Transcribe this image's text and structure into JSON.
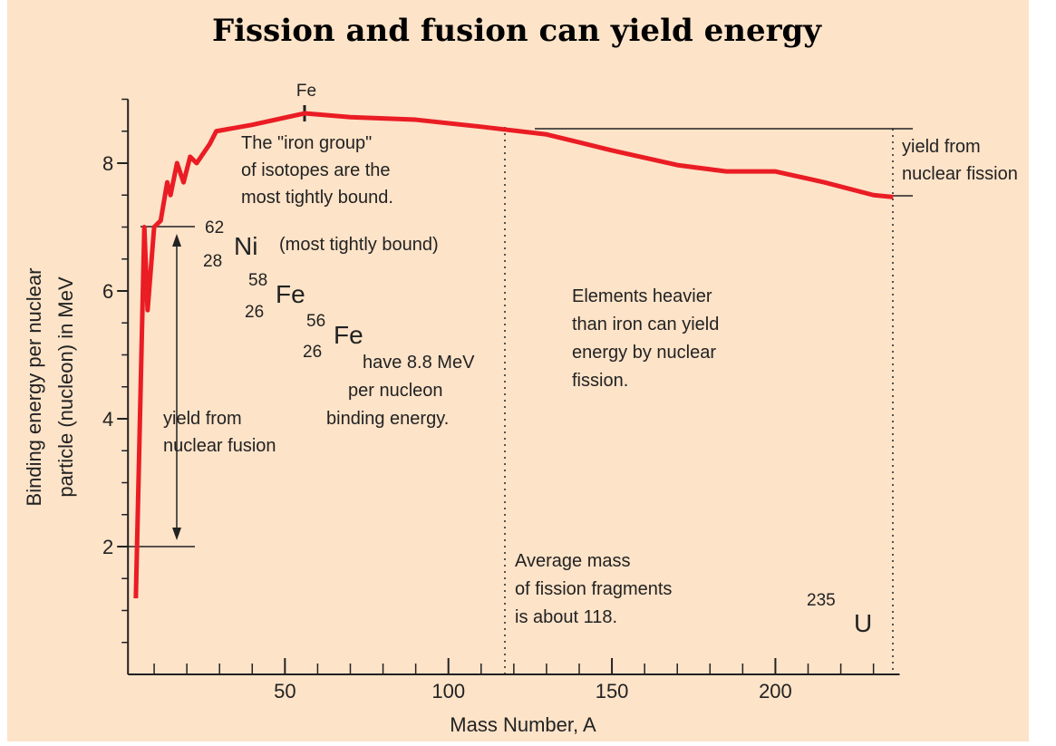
{
  "chart_data": {
    "type": "line",
    "title": "Fission and fusion can yield energy",
    "xlabel": "Mass Number, A",
    "ylabel": [
      "Binding energy per nuclear",
      "particle (nucleon) in MeV"
    ],
    "x": [
      4.4,
      7,
      8,
      10,
      12,
      14,
      15,
      17,
      19,
      21,
      23,
      27,
      29,
      40,
      56,
      70,
      90,
      110,
      130,
      150,
      170,
      185,
      200,
      215,
      230,
      236
    ],
    "series": [
      {
        "name": "Binding energy",
        "color": "#ea1c24",
        "values": [
          1.19,
          7.0,
          5.7,
          7.0,
          7.1,
          7.7,
          7.5,
          8.0,
          7.7,
          8.1,
          8.0,
          8.3,
          8.5,
          8.6,
          8.78,
          8.72,
          8.68,
          8.57,
          8.45,
          8.2,
          7.97,
          7.87,
          7.87,
          7.7,
          7.5,
          7.47
        ]
      }
    ],
    "xlim": [
      2,
      238
    ],
    "ylim": [
      0,
      9
    ],
    "xticks": [
      50,
      100,
      150,
      200
    ],
    "yticks": [
      2,
      4,
      6,
      8
    ],
    "xticks_minor": [
      10,
      20,
      30,
      40,
      60,
      70,
      80,
      90,
      110,
      120,
      130,
      140,
      160,
      170,
      180,
      190,
      210,
      220,
      230
    ],
    "yticks_minor": [
      0.5,
      1,
      1.5,
      2.5,
      3,
      3.5,
      4.5,
      5,
      5.5,
      6.5,
      7,
      7.5,
      8.5,
      9
    ],
    "annotations": {
      "fe_top": "Fe",
      "iron_group": [
        "The \"iron group\"",
        "of isotopes are the",
        "most tightly bound."
      ],
      "ni62": {
        "mass": "62",
        "z": "28",
        "symbol": "Ni",
        "note": "(most tightly bound)"
      },
      "fe58": {
        "mass": "58",
        "z": "26",
        "symbol": "Fe"
      },
      "fe56": {
        "mass": "56",
        "z": "26",
        "symbol": "Fe"
      },
      "have": [
        "have 8.8 MeV",
        "per nucleon",
        "binding energy."
      ],
      "fusion": [
        "yield from",
        "nuclear fusion"
      ],
      "fission_yield": [
        "yield from",
        "nuclear fission"
      ],
      "heavier": [
        "Elements heavier",
        "than iron can yield",
        "energy by nuclear",
        "fission."
      ],
      "average": [
        "Average mass",
        "of fission fragments",
        "is about 118."
      ],
      "u235": {
        "mass": "235",
        "symbol": "U"
      }
    }
  }
}
